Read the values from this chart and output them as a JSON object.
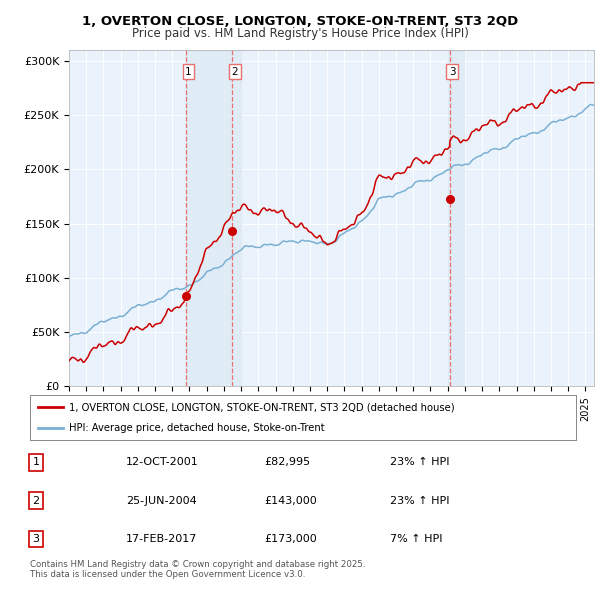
{
  "title_line1": "1, OVERTON CLOSE, LONGTON, STOKE-ON-TRENT, ST3 2QD",
  "title_line2": "Price paid vs. HM Land Registry's House Price Index (HPI)",
  "ylim": [
    0,
    310000
  ],
  "yticks": [
    0,
    50000,
    100000,
    150000,
    200000,
    250000,
    300000
  ],
  "ytick_labels": [
    "£0",
    "£50K",
    "£100K",
    "£150K",
    "£200K",
    "£250K",
    "£300K"
  ],
  "sale_dates": [
    2001.79,
    2004.48,
    2017.12
  ],
  "sale_prices": [
    82995,
    143000,
    173000
  ],
  "sale_labels": [
    "1",
    "2",
    "3"
  ],
  "legend_red": "1, OVERTON CLOSE, LONGTON, STOKE-ON-TRENT, ST3 2QD (detached house)",
  "legend_blue": "HPI: Average price, detached house, Stoke-on-Trent",
  "table_rows": [
    [
      "1",
      "12-OCT-2001",
      "£82,995",
      "23% ↑ HPI"
    ],
    [
      "2",
      "25-JUN-2004",
      "£143,000",
      "23% ↑ HPI"
    ],
    [
      "3",
      "17-FEB-2017",
      "£173,000",
      "7% ↑ HPI"
    ]
  ],
  "footnote": "Contains HM Land Registry data © Crown copyright and database right 2025.\nThis data is licensed under the Open Government Licence v3.0.",
  "red_color": "#cc0000",
  "blue_color": "#7aafd4",
  "vline_color": "#e87070",
  "shade_color": "#deeaf4",
  "background_color": "#ffffff",
  "grid_color": "#cccccc",
  "xmin": 1995.0,
  "xmax": 2025.5
}
